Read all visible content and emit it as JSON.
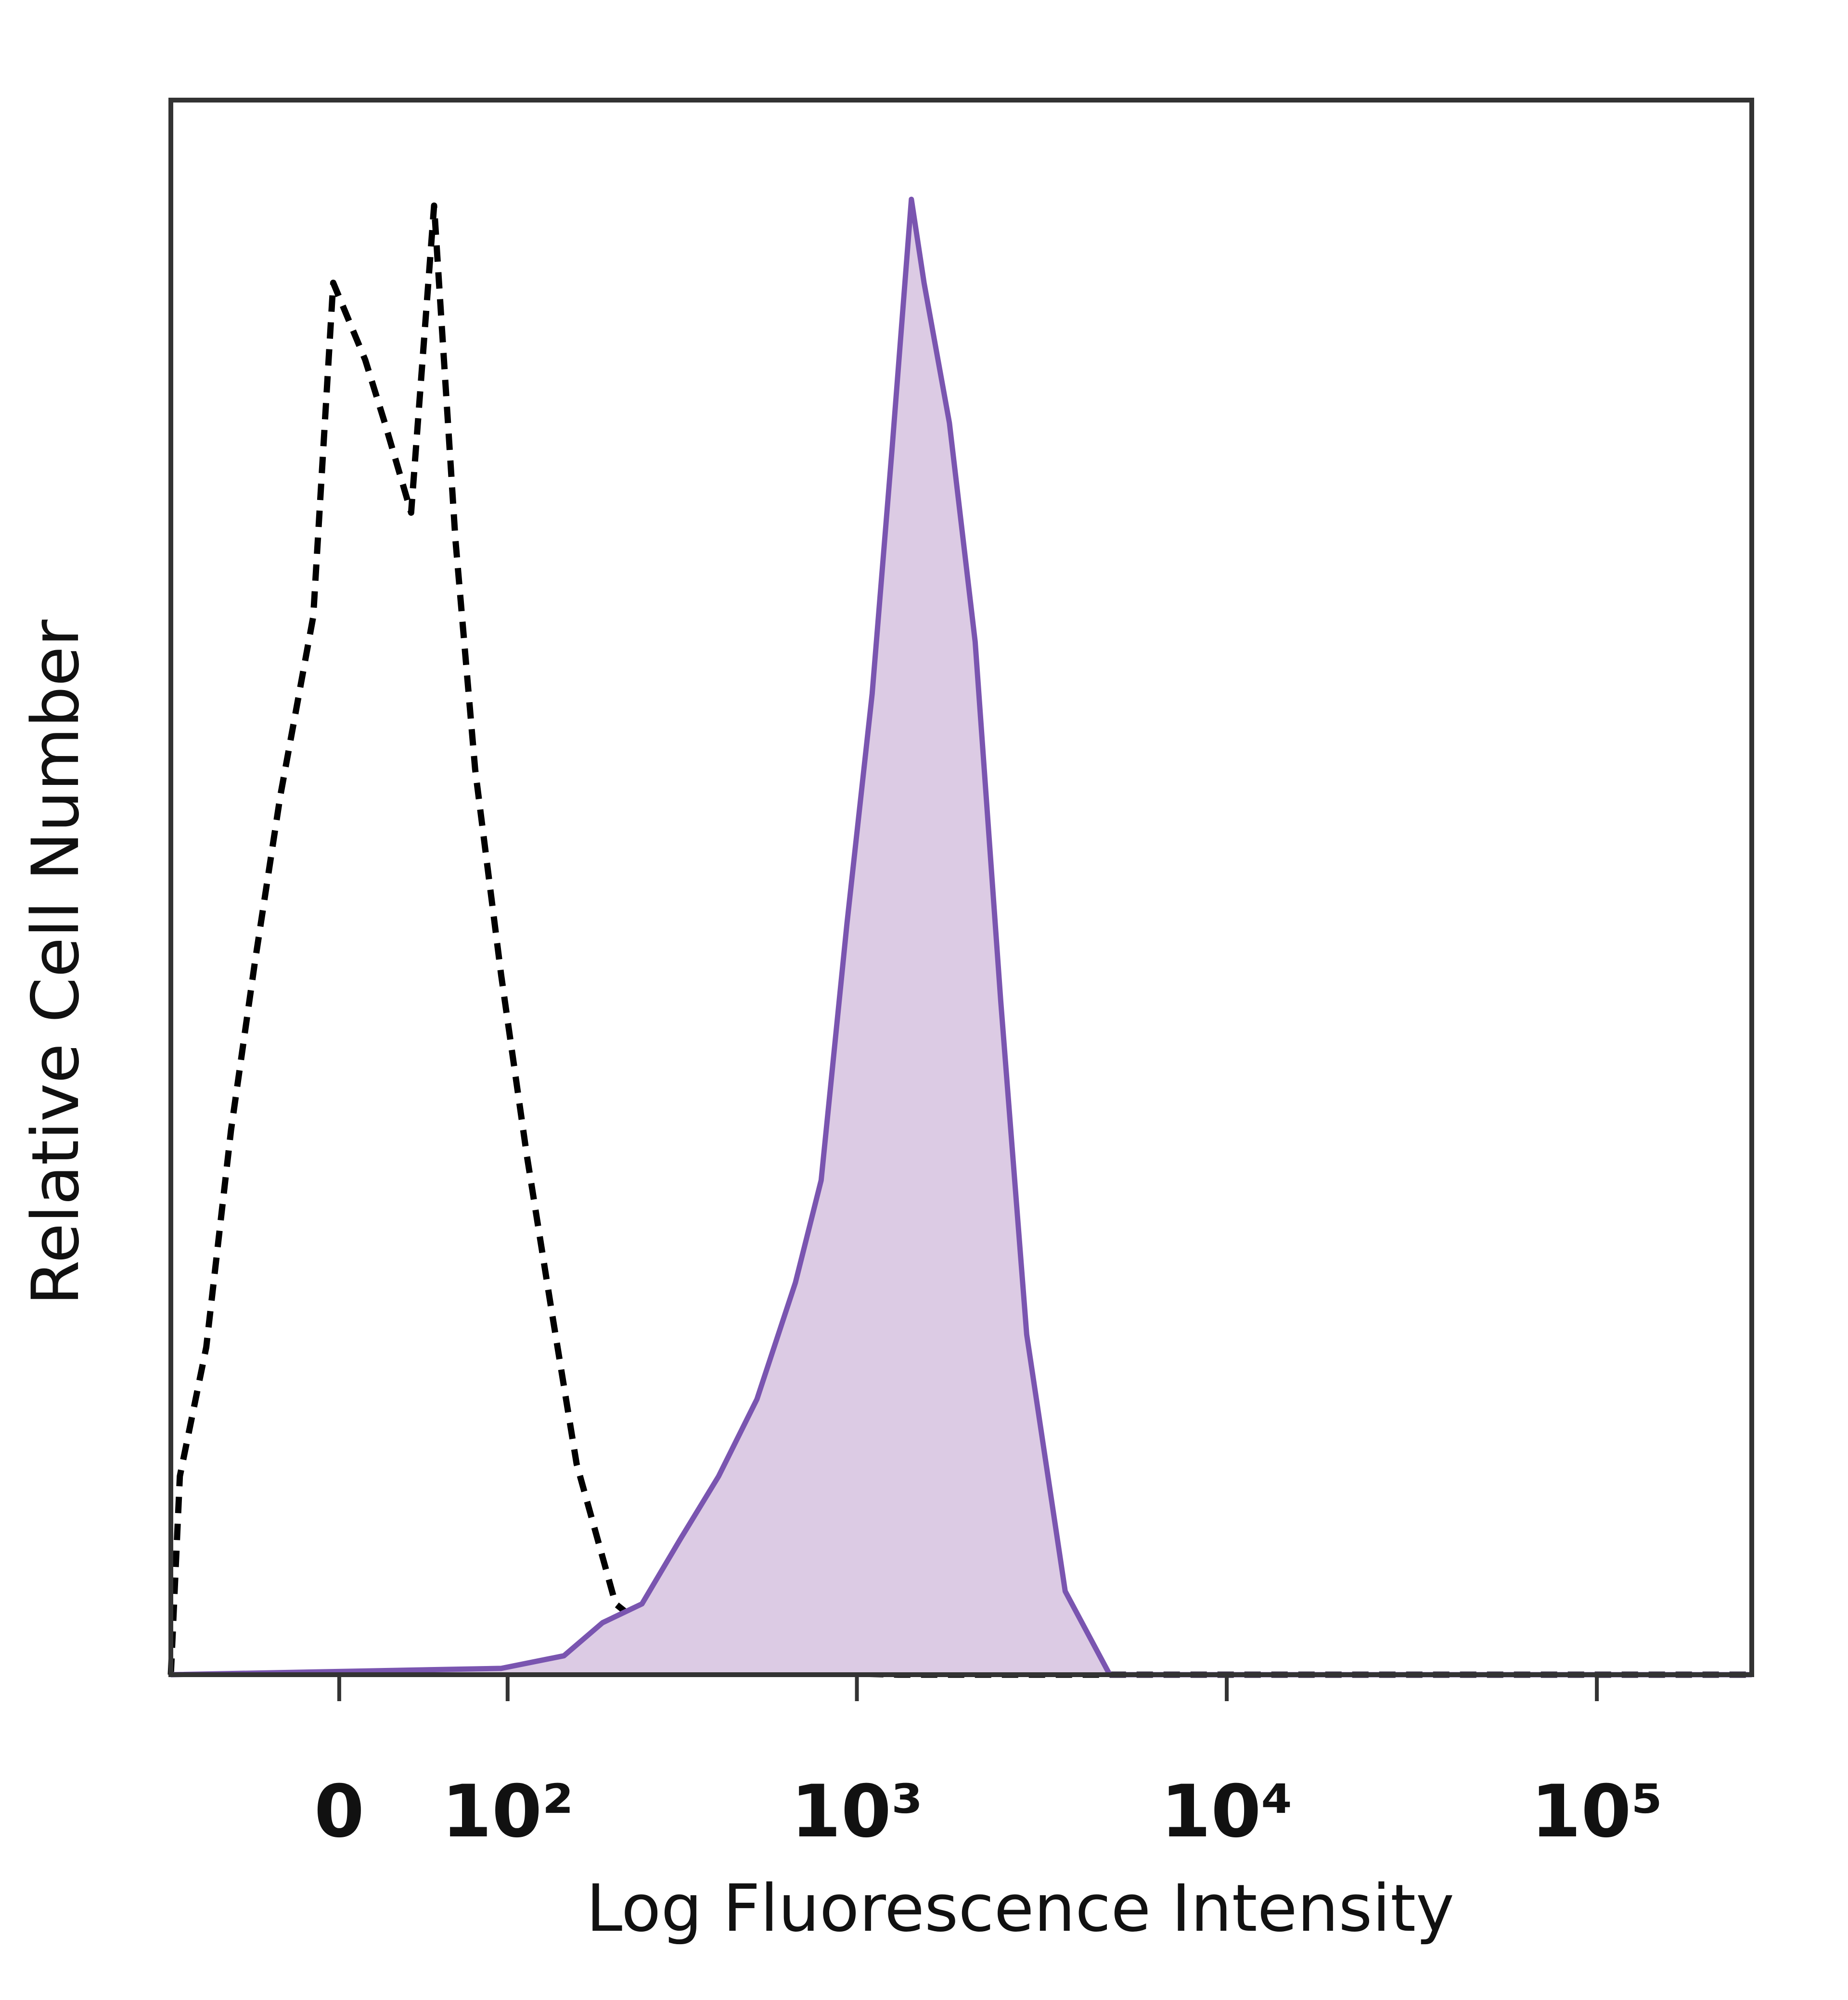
{
  "chart_data": {
    "type": "line",
    "x_label": "Log Fluorescence Intensity",
    "y_label": "Relative Cell Number",
    "xscale": "biexponential",
    "xlim": [
      -100,
      262144
    ],
    "ylim": [
      0,
      100
    ],
    "xticks": [
      0,
      {
        "value": 100,
        "label": "10²"
      },
      {
        "value": 1000,
        "label": "10³"
      },
      {
        "value": 10000,
        "label": "10⁴"
      },
      {
        "value": 100000,
        "label": "10⁵"
      }
    ],
    "series": [
      {
        "color": "#7a55b0",
        "fill": "#dccbe4",
        "style": "solid",
        "x": [
          -100,
          95,
          152,
          198,
          257,
          329,
          420,
          535,
          681,
          800,
          940,
          1100,
          1245,
          1405,
          1520,
          1780,
          2090,
          2450,
          2880,
          3660,
          4830,
          262144
        ],
        "values": [
          0,
          0.4,
          1.2,
          3.3,
          4.5,
          8.6,
          12.6,
          17.5,
          24.9,
          31.4,
          47.7,
          62.3,
          77.8,
          93.7,
          88.4,
          79.5,
          65.6,
          42.8,
          21.6,
          5.3,
          0,
          0
        ]
      },
      {
        "color": "#000000",
        "style": "dashed",
        "x": [
          -100,
          -93,
          -74,
          -58,
          -44,
          -30,
          -13,
          -3,
          13,
          23,
          37,
          50,
          63,
          76,
          95,
          116,
          139,
          166,
          216,
          329,
          581,
          1295,
          262144
        ],
        "values": [
          0,
          12.6,
          20.8,
          34.6,
          45.2,
          55.8,
          67.2,
          88.4,
          83.5,
          79.5,
          73.8,
          93.3,
          72.1,
          57.5,
          44.4,
          33.0,
          23.2,
          13.4,
          4.5,
          1.2,
          0.2,
          0,
          0
        ]
      }
    ]
  }
}
